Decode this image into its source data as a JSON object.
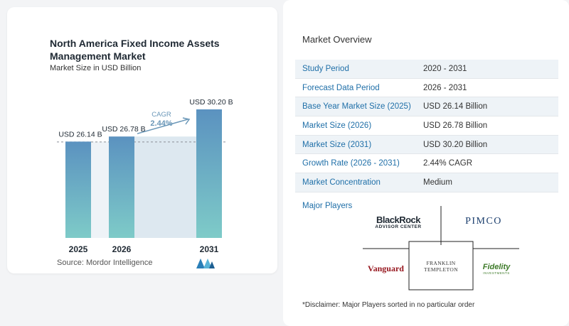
{
  "chart_data": {
    "type": "bar",
    "title": "North America Fixed Income Assets Management Market",
    "subtitle": "Market Size in USD Billion",
    "categories": [
      "2025",
      "2026",
      "2031"
    ],
    "values": [
      26.14,
      26.78,
      30.2
    ],
    "data_labels": [
      "USD 26.14 B",
      "USD 26.78 B",
      "USD 30.20 B"
    ],
    "annotation": {
      "label": "CAGR",
      "value": "2.44%"
    },
    "colors": {
      "bar_top": "#5b92c0",
      "bar_bottom": "#7ecbc8",
      "band": "#dde8f0",
      "arrow": "#6a97b8"
    }
  },
  "source": "Source:  Mordor Intelligence",
  "overview": {
    "title": "Market Overview",
    "rows": [
      {
        "label": "Study Period",
        "value": "2020 - 2031"
      },
      {
        "label": "Forecast Data Period",
        "value": "2026 - 2031"
      },
      {
        "label": "Base Year Market Size (2025)",
        "value": "USD 26.14 Billion"
      },
      {
        "label": "Market Size (2026)",
        "value": "USD 26.78 Billion"
      },
      {
        "label": "Market Size (2031)",
        "value": "USD 30.20 Billion"
      },
      {
        "label": "Growth Rate (2026 - 2031)",
        "value": "2.44% CAGR"
      },
      {
        "label": "Market Concentration",
        "value": "Medium"
      }
    ]
  },
  "players": {
    "title": "Major Players",
    "blackrock": "BlackRock",
    "blackrock_sub": "ADVISOR CENTER",
    "pimco": "PIMCO",
    "vanguard": "Vanguard",
    "franklin_1": "FRANKLIN",
    "franklin_2": "TEMPLETON",
    "fidelity": "Fidelity",
    "fidelity_sub": "INVESTMENTS"
  },
  "disclaimer": "*Disclaimer: Major Players sorted in no particular order"
}
